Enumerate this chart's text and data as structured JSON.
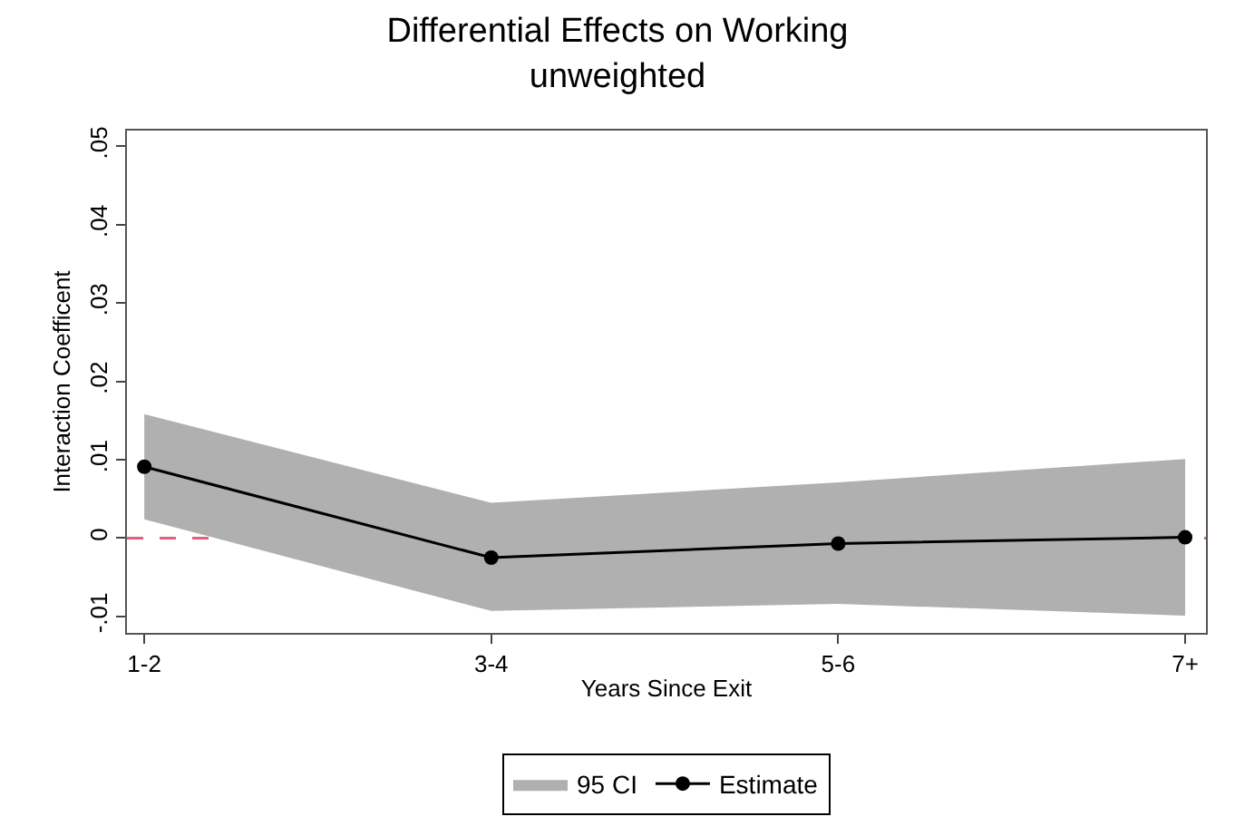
{
  "chart_data": {
    "type": "line",
    "title": "Differential Effects on Working",
    "subtitle": "unweighted",
    "xlabel": "Years Since Exit",
    "ylabel": "Interaction Coefficent",
    "categories": [
      "1-2",
      "3-4",
      "5-6",
      "7+"
    ],
    "series": [
      {
        "name": "Estimate",
        "color": "#000000",
        "values": [
          0.0091,
          -0.0025,
          -0.0007,
          0.0001
        ],
        "lower": [
          0.0024,
          -0.0093,
          -0.0084,
          -0.0099
        ],
        "upper": [
          0.0158,
          0.0045,
          0.0071,
          0.0101
        ]
      }
    ],
    "annotations": [
      "95 CI"
    ],
    "ylim": [
      -0.0121,
      0.052
    ],
    "yticks": [
      {
        "value": -0.01,
        "label": "-.01"
      },
      0,
      {
        "value": 0.01,
        "label": ".01"
      },
      {
        "value": 0.02,
        "label": ".02"
      },
      {
        "value": 0.03,
        "label": ".03"
      },
      {
        "value": 0.04,
        "label": ".04"
      },
      {
        "value": 0.05,
        "label": ".05"
      }
    ],
    "ref_lines": [
      {
        "axis": "y",
        "value": 0,
        "color": "#e0607e",
        "line_style": "dashed"
      }
    ],
    "grid": false,
    "legend": "bottom",
    "marker": "circle",
    "line_style": "solid"
  }
}
